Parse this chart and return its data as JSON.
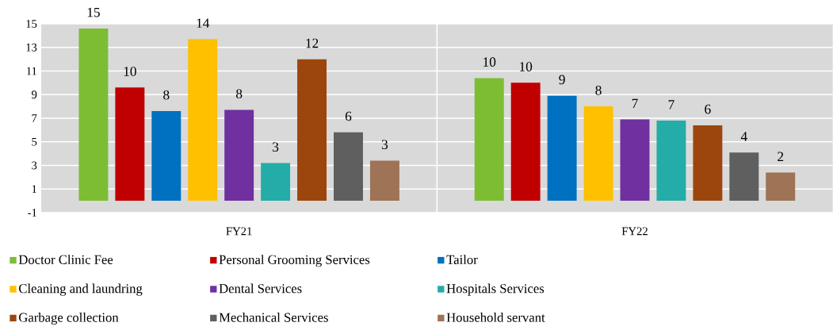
{
  "chart_data": {
    "type": "bar",
    "categories": [
      "FY21",
      "FY22"
    ],
    "series": [
      {
        "name": "Doctor Clinic Fee",
        "color": "#7dbd33",
        "values": [
          14.6,
          10.4
        ],
        "value_labels": [
          "15",
          "10"
        ]
      },
      {
        "name": "Personal Grooming Services",
        "color": "#c00000",
        "values": [
          9.6,
          10.0
        ],
        "value_labels": [
          "10",
          "10"
        ]
      },
      {
        "name": "Tailor",
        "color": "#0070c0",
        "values": [
          7.6,
          8.9
        ],
        "value_labels": [
          "8",
          "9"
        ]
      },
      {
        "name": "Cleaning and laundring",
        "color": "#ffc000",
        "values": [
          13.7,
          8.0
        ],
        "value_labels": [
          "14",
          "8"
        ]
      },
      {
        "name": "Dental Services",
        "color": "#7030a0",
        "values": [
          7.7,
          6.9
        ],
        "value_labels": [
          "8",
          "7"
        ]
      },
      {
        "name": "Hospitals Services",
        "color": "#24aca8",
        "values": [
          3.2,
          6.8
        ],
        "value_labels": [
          "3",
          "7"
        ]
      },
      {
        "name": "Garbage collection",
        "color": "#9c460e",
        "values": [
          12.0,
          6.4
        ],
        "value_labels": [
          "12",
          "6"
        ]
      },
      {
        "name": "Mechanical Services",
        "color": "#5f5f5f",
        "values": [
          5.8,
          4.1
        ],
        "value_labels": [
          "6",
          "4"
        ]
      },
      {
        "name": "Household servant",
        "color": "#9e7356",
        "values": [
          3.4,
          2.4
        ],
        "value_labels": [
          "3",
          "2"
        ]
      }
    ],
    "ylim": [
      -1,
      15
    ],
    "yticks": [
      -1,
      1,
      3,
      5,
      7,
      9,
      11,
      13,
      15
    ],
    "grid": true,
    "legend": "bottom"
  }
}
